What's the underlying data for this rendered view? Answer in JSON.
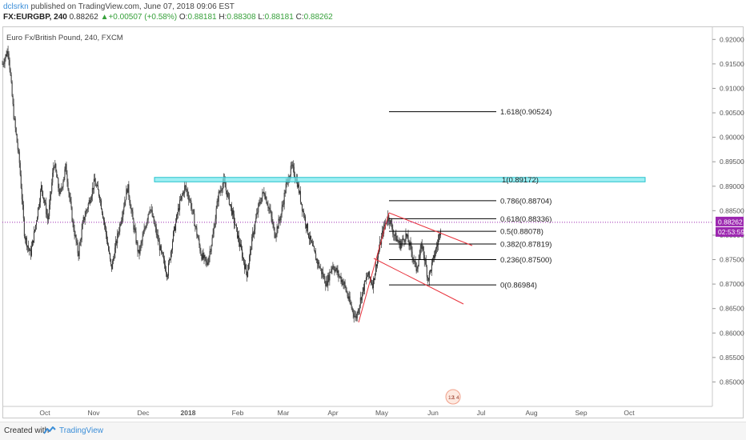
{
  "header": {
    "author": "dclsrkn",
    "published_text": " published on TradingView.com, June 07, 2018 09:06 EST",
    "symbol": "FX:EURGBP, 240",
    "last": "0.88262",
    "change_arrow": "▲",
    "change": "+0.00507 (+0.58%)",
    "o_label": "O:",
    "o_value": "0.88181",
    "h_label": "H:",
    "h_value": "0.88308",
    "l_label": "L:",
    "l_value": "0.88181",
    "c_label": "C:",
    "c_value": "0.88262"
  },
  "footer": {
    "created_with": "Created with",
    "brand": "TradingView"
  },
  "colors": {
    "accent": "#3b8ed8",
    "candle": "#333333",
    "zone_fill": "#7fe9ef",
    "zone_stroke": "#25c2cc",
    "fib_line": "#000000",
    "trend_line": "#e8323c",
    "price_marker": "#9c27b0",
    "up_text": "#36a03a"
  },
  "chart_data": {
    "type": "candlestick",
    "title": "Euro Fx/British Pound, 240, FXCM",
    "symbol": "FX:EURGBP",
    "timeframe": "240",
    "ylim": [
      0.845,
      0.9225
    ],
    "y_ticks": [
      "0.92000",
      "0.91500",
      "0.91000",
      "0.90500",
      "0.90000",
      "0.89500",
      "0.89000",
      "0.88500",
      "0.88000",
      "0.87500",
      "0.87000",
      "0.86500",
      "0.86000",
      "0.85500",
      "0.85000"
    ],
    "x_ticks": [
      "Oct",
      "Nov",
      "Dec",
      "2018",
      "Feb",
      "Mar",
      "Apr",
      "May",
      "Jun",
      "Jul",
      "Aug",
      "Sep",
      "Oct"
    ],
    "grid": false,
    "price_path": [
      [
        0.0,
        0.915
      ],
      [
        0.8,
        0.918
      ],
      [
        1.5,
        0.905
      ],
      [
        2.3,
        0.895
      ],
      [
        3.0,
        0.88
      ],
      [
        3.8,
        0.876
      ],
      [
        4.5,
        0.882
      ],
      [
        5.3,
        0.89
      ],
      [
        6.2,
        0.883
      ],
      [
        7.0,
        0.895
      ],
      [
        7.8,
        0.888
      ],
      [
        8.6,
        0.894
      ],
      [
        9.5,
        0.883
      ],
      [
        10.3,
        0.876
      ],
      [
        11.0,
        0.883
      ],
      [
        11.8,
        0.887
      ],
      [
        12.5,
        0.891
      ],
      [
        13.2,
        0.888
      ],
      [
        14.0,
        0.881
      ],
      [
        14.8,
        0.873
      ],
      [
        15.4,
        0.878
      ],
      [
        16.2,
        0.884
      ],
      [
        17.0,
        0.89
      ],
      [
        17.8,
        0.882
      ],
      [
        18.5,
        0.876
      ],
      [
        19.3,
        0.881
      ],
      [
        20.0,
        0.886
      ],
      [
        20.8,
        0.881
      ],
      [
        21.6,
        0.876
      ],
      [
        22.4,
        0.872
      ],
      [
        23.2,
        0.88
      ],
      [
        24.0,
        0.886
      ],
      [
        24.8,
        0.89
      ],
      [
        25.5,
        0.887
      ],
      [
        26.3,
        0.881
      ],
      [
        27.0,
        0.876
      ],
      [
        27.8,
        0.874
      ],
      [
        28.6,
        0.88
      ],
      [
        29.3,
        0.888
      ],
      [
        30.0,
        0.891
      ],
      [
        30.8,
        0.887
      ],
      [
        31.6,
        0.882
      ],
      [
        32.4,
        0.877
      ],
      [
        33.2,
        0.872
      ],
      [
        34.0,
        0.88
      ],
      [
        34.8,
        0.886
      ],
      [
        35.5,
        0.889
      ],
      [
        36.3,
        0.885
      ],
      [
        37.0,
        0.88
      ],
      [
        37.8,
        0.884
      ],
      [
        38.5,
        0.89
      ],
      [
        39.3,
        0.894
      ],
      [
        40.0,
        0.891
      ],
      [
        40.8,
        0.885
      ],
      [
        41.6,
        0.88
      ],
      [
        42.4,
        0.876
      ],
      [
        43.2,
        0.873
      ],
      [
        44.0,
        0.87
      ],
      [
        44.8,
        0.874
      ],
      [
        45.6,
        0.872
      ],
      [
        46.4,
        0.87
      ],
      [
        47.2,
        0.866
      ],
      [
        48.0,
        0.863
      ],
      [
        48.8,
        0.868
      ],
      [
        49.6,
        0.872
      ],
      [
        50.3,
        0.87
      ],
      [
        51.0,
        0.876
      ],
      [
        51.7,
        0.881
      ],
      [
        52.4,
        0.884
      ],
      [
        53.2,
        0.88
      ],
      [
        54.0,
        0.878
      ],
      [
        54.8,
        0.88
      ],
      [
        55.5,
        0.877
      ],
      [
        56.2,
        0.873
      ],
      [
        57.0,
        0.878
      ],
      [
        57.8,
        0.871
      ],
      [
        58.5,
        0.875
      ],
      [
        59.2,
        0.879
      ],
      [
        59.6,
        0.8826
      ]
    ],
    "pivot_labels": [
      "12",
      "1",
      "4"
    ],
    "annotations": [
      {
        "type": "zone",
        "value_low": 0.8909,
        "value_high": 0.8918,
        "label": "1(0.89172)"
      },
      {
        "type": "fib",
        "ratio": "1.618",
        "price": 0.90524,
        "label": "1.618(0.90524)"
      },
      {
        "type": "fib",
        "ratio": "0.786",
        "price": 0.88704,
        "label": "0.786(0.88704)"
      },
      {
        "type": "fib",
        "ratio": "0.618",
        "price": 0.88336,
        "label": "0.618(0.88336)"
      },
      {
        "type": "fib",
        "ratio": "0.5",
        "price": 0.88078,
        "label": "0.5(0.88078)"
      },
      {
        "type": "fib",
        "ratio": "0.382",
        "price": 0.87819,
        "label": "0.382(0.87819)"
      },
      {
        "type": "fib",
        "ratio": "0.236",
        "price": 0.875,
        "label": "0.236(0.87500)"
      },
      {
        "type": "fib",
        "ratio": "0",
        "price": 0.86984,
        "label": "0(0.86984)"
      }
    ],
    "current_price": "0.88262",
    "countdown": "02:53:59"
  }
}
